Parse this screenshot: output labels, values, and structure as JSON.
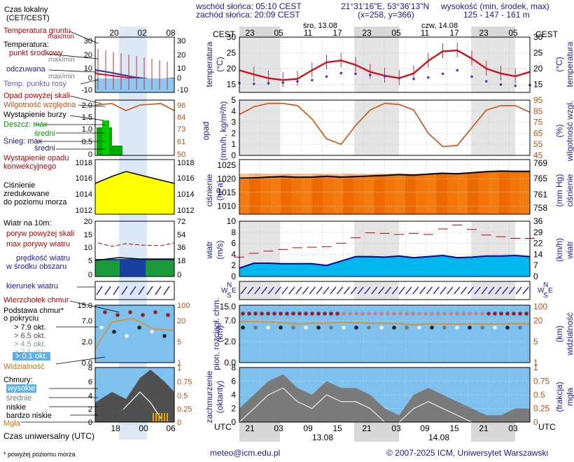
{
  "header": {
    "sunrise": "wschód słońca: 05:10 CEST",
    "sunset": "zachód słońca: 20:09 CEST",
    "coords": "21°31'16\"E, 53°36'13\"N",
    "grid": "(x=258, y=366)",
    "height_title": "wysokość (min, środek, max)",
    "height_vals": "125 - 147 - 161 m",
    "local_time_label": "Czas lokalny",
    "local_time_sub": "(CET/CEST)",
    "cest_left": "CEST",
    "cest_right": "CEST",
    "day1": "śro, 13.08",
    "day2": "czw, 14.08",
    "top_hours": [
      "23",
      "05",
      "11",
      "17",
      "23",
      "05",
      "11",
      "17",
      "23",
      "05"
    ],
    "legend_top_hours": [
      "20",
      "02",
      "08"
    ]
  },
  "legend": {
    "ground_temp": "Temperatura gruntu",
    "maxmin": "max/min",
    "temperature": "Temperatura:",
    "mid_point": "punkt środkowy",
    "maxmin2": "max/min",
    "perceived": "odczuwana",
    "maxmin3": "max/min",
    "dewpoint": "Temp. punktu rosy",
    "precip_over": "Opad powyżej skali",
    "humidity": "Wilgotność względna",
    "storm": "Wystąpienie burzy",
    "rain": "Deszcz: max",
    "rain_mid": "średni",
    "snow": "Śnieg: max",
    "snow_mid": "średni",
    "conv": "Wystąpienie opadu",
    "conv2": "konwekcyjnego",
    "pressure": "Ciśnienie",
    "pressure2": "zredukowane",
    "pressure3": "do poziomu morza",
    "wind_title": "Wiatr na 10m:",
    "gust_over": "poryw powyżej skali",
    "gust_max": "max porywy wiatru",
    "wind_mean": "prędkość wiatru",
    "wind_mean2": "w środku obszaru",
    "wind_dir": "kierunek wiatru",
    "cb_top": "Wierzchołek chmur",
    "cloud_base": "Podstawa chmur*",
    "cloud_base2": "o pokryciu",
    "okt79": "> 7.9 okt.",
    "okt65": "> 6.5 okt.",
    "okt45": "> 4.5 okt.",
    "okt25": "> 2.5 okt.",
    "okt01": "> 0.1 okt.",
    "visibility": "Widzialność",
    "clouds": "Chmury:",
    "high": "wysokie",
    "mid": "średnie",
    "low": "niskie",
    "vlow": "bardzo niskie",
    "fog": "Mgła",
    "utc_label": "Czas uniwersalny (UTC)",
    "footnote": "* powyżej poziomu morza",
    "utc_hours": [
      "18",
      "00",
      "06"
    ]
  },
  "axes": {
    "temp_l": "temperatura",
    "temp_l2": "(°C)",
    "temp_r": "temperatura",
    "temp_r2": "(°C)",
    "precip_l": "opad",
    "precip_l2": "(mm/h, kg/m²/h)",
    "hum_r": "wilgotność wzgl.",
    "hum_r2": "(%)",
    "press_l": "ciśnienie",
    "press_l2": "(hPa)",
    "press_r": "ciśnienie",
    "press_r2": "(mm Hg)",
    "wind_l": "wiatr",
    "wind_l2": "(m/s)",
    "wind_r": "wiatr",
    "wind_r2": "(km/h)",
    "cloudbase_l": "pion. rozciągł. chm.",
    "cloudbase_l2": "(km)",
    "vis_r": "widzialność",
    "vis_r2": "(km)",
    "cover_l": "zachmurzenie",
    "cover_l2": "(oktanty)",
    "fog_r": "mgła",
    "fog_r2": "(frakcja)",
    "utc_left": "UTC",
    "utc_right": "UTC",
    "bottom_hours": [
      "21",
      "03",
      "09",
      "15",
      "21",
      "03",
      "09",
      "15",
      "21",
      "03"
    ],
    "bottom_dates": [
      "13.08",
      "14.08"
    ],
    "ticks": {
      "temp": [
        "30",
        "25",
        "20",
        "15"
      ],
      "precip": [
        "5",
        "4",
        "3",
        "2",
        "1",
        "0"
      ],
      "hum": [
        "95",
        "85",
        "75",
        "65",
        "55",
        "45"
      ],
      "press": [
        "1025",
        "1020",
        "1015",
        "1010"
      ],
      "press_mm": [
        "769",
        "765",
        "761",
        "758"
      ],
      "wind": [
        "10",
        "8",
        "6",
        "4",
        "2",
        "0"
      ],
      "wind_kmh": [
        "36",
        "29",
        "22",
        "14",
        "7",
        "0"
      ],
      "cb": [
        "15.0",
        "7.0",
        "2.0",
        "0.0"
      ],
      "vis": [
        "100",
        "20",
        "5",
        "1"
      ],
      "cover": [
        "8",
        "6",
        "4",
        "2",
        "0"
      ],
      "fog": [
        "1",
        "0.75",
        "0.5",
        "0.25",
        "0"
      ],
      "lt_temp": [
        "30",
        "20",
        "10",
        "0",
        "-10"
      ],
      "lt_temp_r": [
        "30",
        "20",
        "10",
        "0",
        "-10"
      ],
      "lt_precip": [
        "2.0",
        "1.5",
        "1.0",
        "0.5",
        "0"
      ],
      "lt_hum": [
        "96",
        "84",
        "73",
        "61",
        "50"
      ],
      "lt_press": [
        "1018",
        "1016",
        "1014",
        "1012"
      ],
      "lt_press_r": [
        "1018",
        "1016",
        "1014",
        "1012"
      ],
      "lt_wind": [
        "20",
        "15",
        "10",
        "5",
        "0"
      ],
      "lt_wind_r": [
        "72",
        "54",
        "36",
        "18",
        "0"
      ],
      "lt_cb": [
        "15.0",
        "7.0",
        "2.0",
        "0.0"
      ],
      "lt_vis": [
        "100",
        "20",
        "5",
        "1"
      ],
      "lt_cover": [
        "8",
        "6",
        "4",
        "2",
        "0"
      ],
      "lt_fog": [
        "1",
        "0.75",
        "0.5",
        "0.25",
        "0"
      ]
    }
  },
  "footer": {
    "email": "meteo@icm.edu.pl",
    "copyright": "© 2007-2025 ICM, Uniwersytet Warszawski"
  },
  "colors": {
    "label_blue": "#1a1a9a",
    "temp_red": "#d01020",
    "dewpoint_blue": "#3030c0",
    "humidity_orange": "#d05010",
    "pressure_yellow": "#ffff00",
    "pressure_orange": "#f07000",
    "wind_cyan": "#00c0ff",
    "panel_blue": "#8ec8f0",
    "night_gray": "#e0e0e0"
  },
  "chart_data": {
    "type": "line",
    "title": "",
    "x_label": "UTC",
    "time_utc_hours": [
      18,
      21,
      0,
      3,
      6,
      9,
      12,
      15,
      18,
      21,
      0,
      3,
      6,
      9,
      12,
      15,
      18,
      21,
      0,
      3,
      5
    ],
    "series": [
      {
        "name": "temperatura",
        "unit": "°C",
        "values": [
          19.5,
          18.2,
          17.0,
          16.4,
          16.8,
          19.5,
          22.0,
          22.6,
          21.2,
          19.0,
          17.8,
          17.0,
          18.5,
          22.5,
          25.5,
          25.8,
          23.2,
          20.0,
          18.5,
          17.6,
          19.0
        ]
      },
      {
        "name": "temp. punktu rosy",
        "unit": "°C",
        "values": [
          15.5,
          15.2,
          15.4,
          15.6,
          16.0,
          16.4,
          17.5,
          18.6,
          18.4,
          18.0,
          17.6,
          17.0,
          16.8,
          17.2,
          18.4,
          19.5,
          17.5,
          16.0,
          15.0,
          14.6,
          14.8
        ]
      },
      {
        "name": "opad",
        "unit": "mm/h",
        "values": [
          0,
          0,
          0,
          0,
          0,
          0,
          0,
          0,
          0,
          0,
          0,
          0,
          0,
          0,
          0,
          0,
          0,
          0,
          0,
          0,
          0
        ]
      },
      {
        "name": "wilgotność względna",
        "unit": "%",
        "values": [
          82,
          89,
          92,
          92,
          90,
          78,
          60,
          55,
          72,
          86,
          92,
          91,
          86,
          65,
          53,
          54,
          70,
          86,
          90,
          90,
          84
        ]
      },
      {
        "name": "ciśnienie",
        "unit": "hPa",
        "values": [
          1020.2,
          1020.3,
          1020.6,
          1020.8,
          1020.5,
          1020.6,
          1020.9,
          1020.6,
          1020.8,
          1021.0,
          1021.2,
          1021.5,
          1021.3,
          1021.7,
          1022.0,
          1021.8,
          1022.2,
          1022.6,
          1022.8,
          1022.7,
          1022.7
        ]
      },
      {
        "name": "prędkość wiatru",
        "unit": "m/s",
        "values": [
          1.5,
          2.4,
          2.4,
          2.3,
          2.3,
          2.3,
          2.0,
          2.8,
          3.6,
          3.6,
          3.5,
          3.7,
          3.4,
          3.6,
          3.8,
          3.4,
          3.5,
          3.7,
          3.7,
          3.8,
          3.6
        ]
      },
      {
        "name": "max porywy wiatru",
        "unit": "m/s",
        "values": [
          3.5,
          4.2,
          4.6,
          4.9,
          5.2,
          5.3,
          5.4,
          6.0,
          7.0,
          7.9,
          7.8,
          7.6,
          7.8,
          7.6,
          8.6,
          9.3,
          8.5,
          7.5,
          7.2,
          6.9,
          6.9
        ]
      },
      {
        "name": "widzialność",
        "unit": "km",
        "values": [
          28,
          28,
          27,
          25,
          22,
          24,
          24,
          26,
          25,
          24,
          24,
          23,
          20,
          22,
          22,
          22,
          22,
          22,
          22,
          23,
          22
        ]
      },
      {
        "name": "zachmurzenie",
        "unit": "oktanty",
        "values": [
          2,
          4,
          6,
          7,
          5,
          4,
          6,
          5,
          5,
          4,
          2,
          1,
          4,
          5,
          4,
          3,
          2,
          1,
          1,
          2,
          2
        ]
      }
    ]
  }
}
